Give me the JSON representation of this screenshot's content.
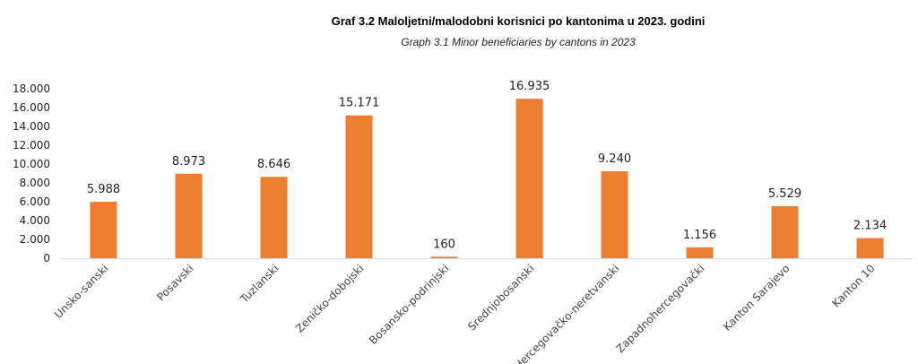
{
  "chart_data": {
    "type": "bar",
    "title": "Graf 3.2 Maloljetni/malodobni korisnici po kantonima  u 2023. godini",
    "subtitle": "Graph 3.1 Minor beneficiaries by cantons  in 2023",
    "categories": [
      "Unsko-sanski",
      "Posavski",
      "Tuzlanski",
      "Zeničko-dobojski",
      "Bosansko-podrinjski",
      "Srednjobosanski",
      "Hercegovačko-neretvanski",
      "Zapadnohercegovački",
      "Kanton Sarajevo",
      "Kanton 10"
    ],
    "values": [
      5988,
      8973,
      8646,
      15171,
      160,
      16935,
      9240,
      1156,
      5529,
      2134
    ],
    "value_labels": [
      "5.988",
      "8.973",
      "8.646",
      "15.171",
      "160",
      "16.935",
      "9.240",
      "1.156",
      "5.529",
      "2.134"
    ],
    "y_ticks": [
      0,
      2000,
      4000,
      6000,
      8000,
      10000,
      12000,
      14000,
      16000,
      18000
    ],
    "y_tick_labels": [
      "0",
      "2.000",
      "4.000",
      "6.000",
      "8.000",
      "10.000",
      "12.000",
      "14.000",
      "16.000",
      "18.000"
    ],
    "ylim": [
      0,
      18000
    ],
    "grid": false,
    "legend": "none",
    "bar_color": "#ED7D31",
    "axis_color": "#D9D9D9"
  }
}
